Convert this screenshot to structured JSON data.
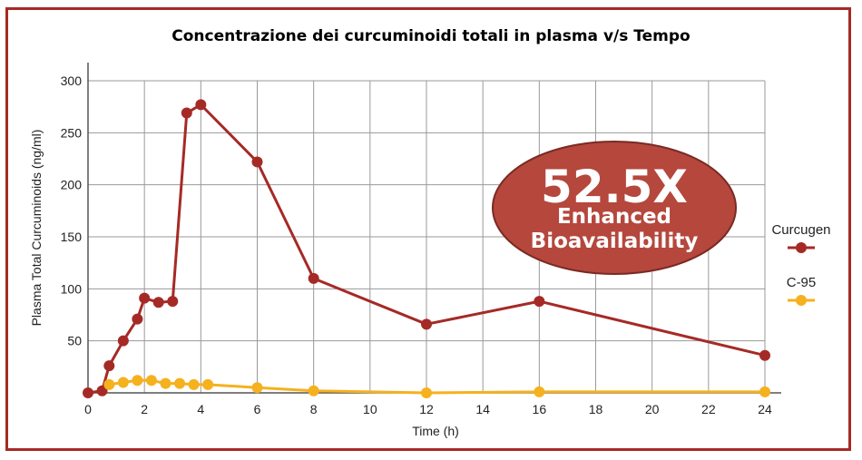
{
  "chart_data": {
    "type": "line",
    "title": "Concentrazione dei curcuminoidi totali in plasma v/s Tempo",
    "xlabel": "Time (h)",
    "ylabel": "Plasma Total Curcuminoids (ng/ml)",
    "xlim": [
      0,
      24
    ],
    "ylim": [
      0,
      300
    ],
    "xticks": [
      0,
      2,
      4,
      6,
      8,
      10,
      12,
      14,
      16,
      18,
      20,
      22,
      24
    ],
    "yticks": [
      50,
      100,
      150,
      200,
      250,
      300
    ],
    "grid": true,
    "legend_position": "right",
    "series": [
      {
        "name": "Curcugen",
        "color": "#a52a26",
        "points": [
          [
            0,
            0
          ],
          [
            0.5,
            2
          ],
          [
            0.75,
            26
          ],
          [
            1.25,
            50
          ],
          [
            1.75,
            71
          ],
          [
            2,
            91
          ],
          [
            2.5,
            87
          ],
          [
            3,
            88
          ],
          [
            3.5,
            269
          ],
          [
            4,
            277
          ],
          [
            6,
            222
          ],
          [
            8,
            110
          ],
          [
            12,
            66
          ],
          [
            16,
            88
          ],
          [
            24,
            36
          ]
        ]
      },
      {
        "name": "C-95",
        "color": "#f5b11e",
        "points": [
          [
            0.75,
            8
          ],
          [
            1.25,
            10
          ],
          [
            1.75,
            12
          ],
          [
            2.25,
            12
          ],
          [
            2.75,
            9
          ],
          [
            3.25,
            9
          ],
          [
            3.75,
            8
          ],
          [
            4.25,
            8
          ],
          [
            6,
            5
          ],
          [
            8,
            2
          ],
          [
            12,
            0
          ],
          [
            16,
            1
          ],
          [
            24,
            1
          ]
        ]
      }
    ],
    "annotation": {
      "headline": "52.5X",
      "line1": "Enhanced",
      "line2": "Bioavailability",
      "fill": "#b5473d"
    }
  }
}
